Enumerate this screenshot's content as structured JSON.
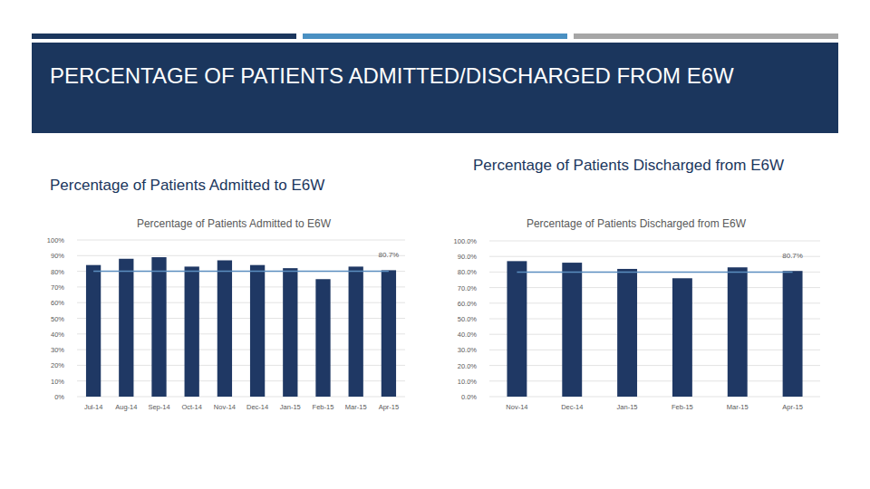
{
  "slide": {
    "title": "PERCENTAGE OF PATIENTS ADMITTED/DISCHARGED FROM E6W",
    "subtitles": [
      "Percentage of Patients Admitted to E6W",
      "Percentage of Patients Discharged from E6W"
    ]
  },
  "chart_data": [
    {
      "type": "bar",
      "title": "Percentage of Patients Admitted to E6W",
      "categories": [
        "Jul-14",
        "Aug-14",
        "Sep-14",
        "Oct-14",
        "Nov-14",
        "Dec-14",
        "Jan-15",
        "Feb-15",
        "Mar-15",
        "Apr-15"
      ],
      "values": [
        84,
        88,
        89,
        83,
        87,
        84,
        82,
        75,
        83,
        80.7
      ],
      "value_labels": [
        null,
        null,
        null,
        null,
        null,
        null,
        null,
        null,
        null,
        "80.7%"
      ],
      "data_labels": true,
      "target": 80,
      "color": "#1f3864",
      "ylim": [
        0,
        100
      ],
      "yticks": [
        {
          "value": 0,
          "label": "0%"
        },
        {
          "value": 10,
          "label": "10%"
        },
        {
          "value": 20,
          "label": "20%"
        },
        {
          "value": 30,
          "label": "30%"
        },
        {
          "value": 40,
          "label": "40%"
        },
        {
          "value": 50,
          "label": "50%"
        },
        {
          "value": 60,
          "label": "60%"
        },
        {
          "value": 70,
          "label": "70%"
        },
        {
          "value": 80,
          "label": "80%"
        },
        {
          "value": 90,
          "label": "90%"
        },
        {
          "value": 100,
          "label": "100%"
        }
      ],
      "grid": true
    },
    {
      "type": "bar",
      "title": "Percentage of Patients Discharged from E6W",
      "categories": [
        "Nov-14",
        "Dec-14",
        "Jan-15",
        "Feb-15",
        "Mar-15",
        "Apr-15"
      ],
      "values": [
        87,
        86,
        82,
        76,
        83,
        80.7
      ],
      "value_labels": [
        null,
        null,
        null,
        null,
        null,
        "80.7%"
      ],
      "data_labels": true,
      "target": 80,
      "color": "#1f3864",
      "ylim": [
        0,
        100
      ],
      "yticks": [
        {
          "value": 0,
          "label": "0.0%"
        },
        {
          "value": 10,
          "label": "10.0%"
        },
        {
          "value": 20,
          "label": "20.0%"
        },
        {
          "value": 30,
          "label": "30.0%"
        },
        {
          "value": 40,
          "label": "40.0%"
        },
        {
          "value": 50,
          "label": "50.0%"
        },
        {
          "value": 60,
          "label": "60.0%"
        },
        {
          "value": 70,
          "label": "70.0%"
        },
        {
          "value": 80,
          "label": "80.0%"
        },
        {
          "value": 90,
          "label": "90.0%"
        },
        {
          "value": 100,
          "label": "100.0%"
        }
      ],
      "grid": true
    }
  ]
}
